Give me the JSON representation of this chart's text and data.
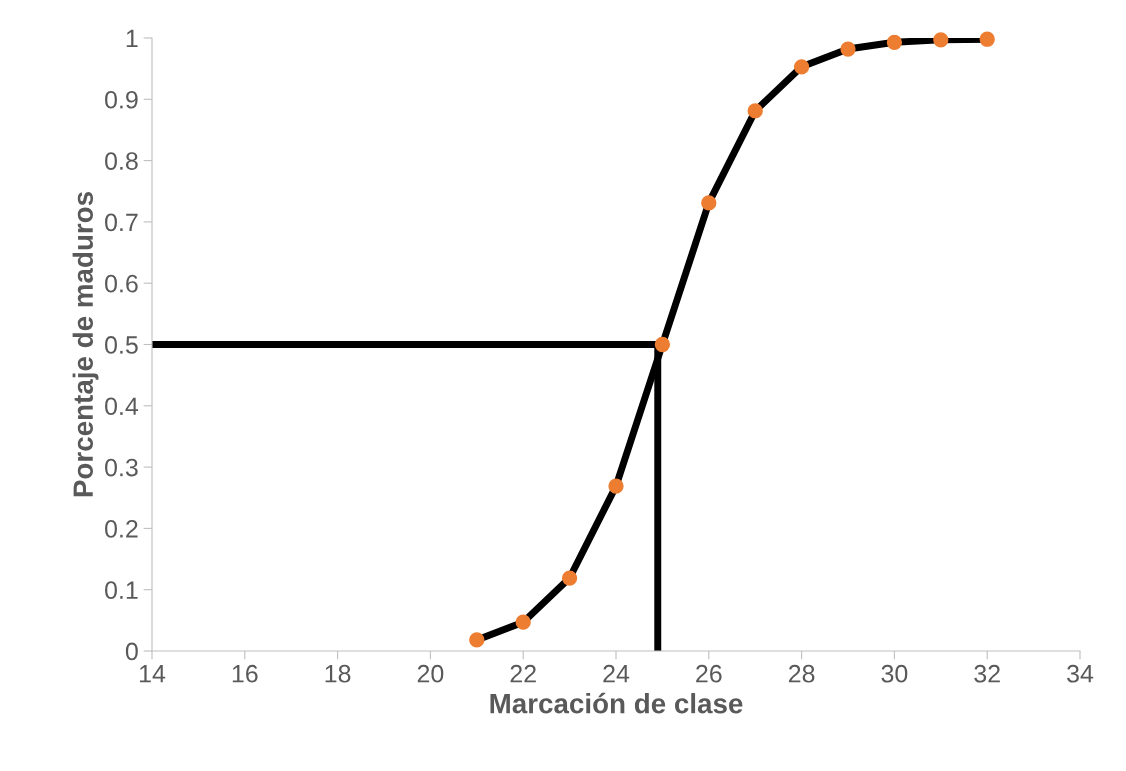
{
  "chart_data": {
    "type": "line",
    "xlabel": "Marcación de clase",
    "ylabel": "Porcentaje de maduros",
    "series": [
      {
        "color": "#000000",
        "x": [
          21,
          22,
          23,
          24,
          25,
          26,
          27,
          28,
          29,
          30,
          31,
          32
        ],
        "values": [
          0.018,
          0.047,
          0.119,
          0.269,
          0.5,
          0.731,
          0.881,
          0.953,
          0.982,
          0.993,
          0.997,
          0.998
        ]
      },
      {
        "type": "scatter",
        "marker": "circle",
        "color": "#ed7d31",
        "x": [
          21,
          22,
          23,
          24,
          25,
          26,
          27,
          28,
          29,
          30,
          31,
          32
        ],
        "values": [
          0.018,
          0.047,
          0.119,
          0.269,
          0.5,
          0.731,
          0.881,
          0.953,
          0.982,
          0.993,
          0.997,
          0.998
        ]
      }
    ],
    "line_style": "solid",
    "xlim": [
      14,
      34
    ],
    "xticks": [
      14,
      16,
      18,
      20,
      22,
      24,
      26,
      28,
      30,
      32,
      34
    ],
    "ylim": [
      0,
      1
    ],
    "yticks": [
      0,
      0.1,
      0.2,
      0.3,
      0.4,
      0.5,
      0.6,
      0.7,
      0.8,
      0.9,
      1
    ],
    "ref_lines": [
      {
        "axis": "y",
        "value": 0.5,
        "color": "#000000",
        "line_style": "solid"
      },
      {
        "axis": "x",
        "value": 24.9,
        "color": "#000000",
        "line_style": "solid"
      }
    ],
    "grid": false
  }
}
